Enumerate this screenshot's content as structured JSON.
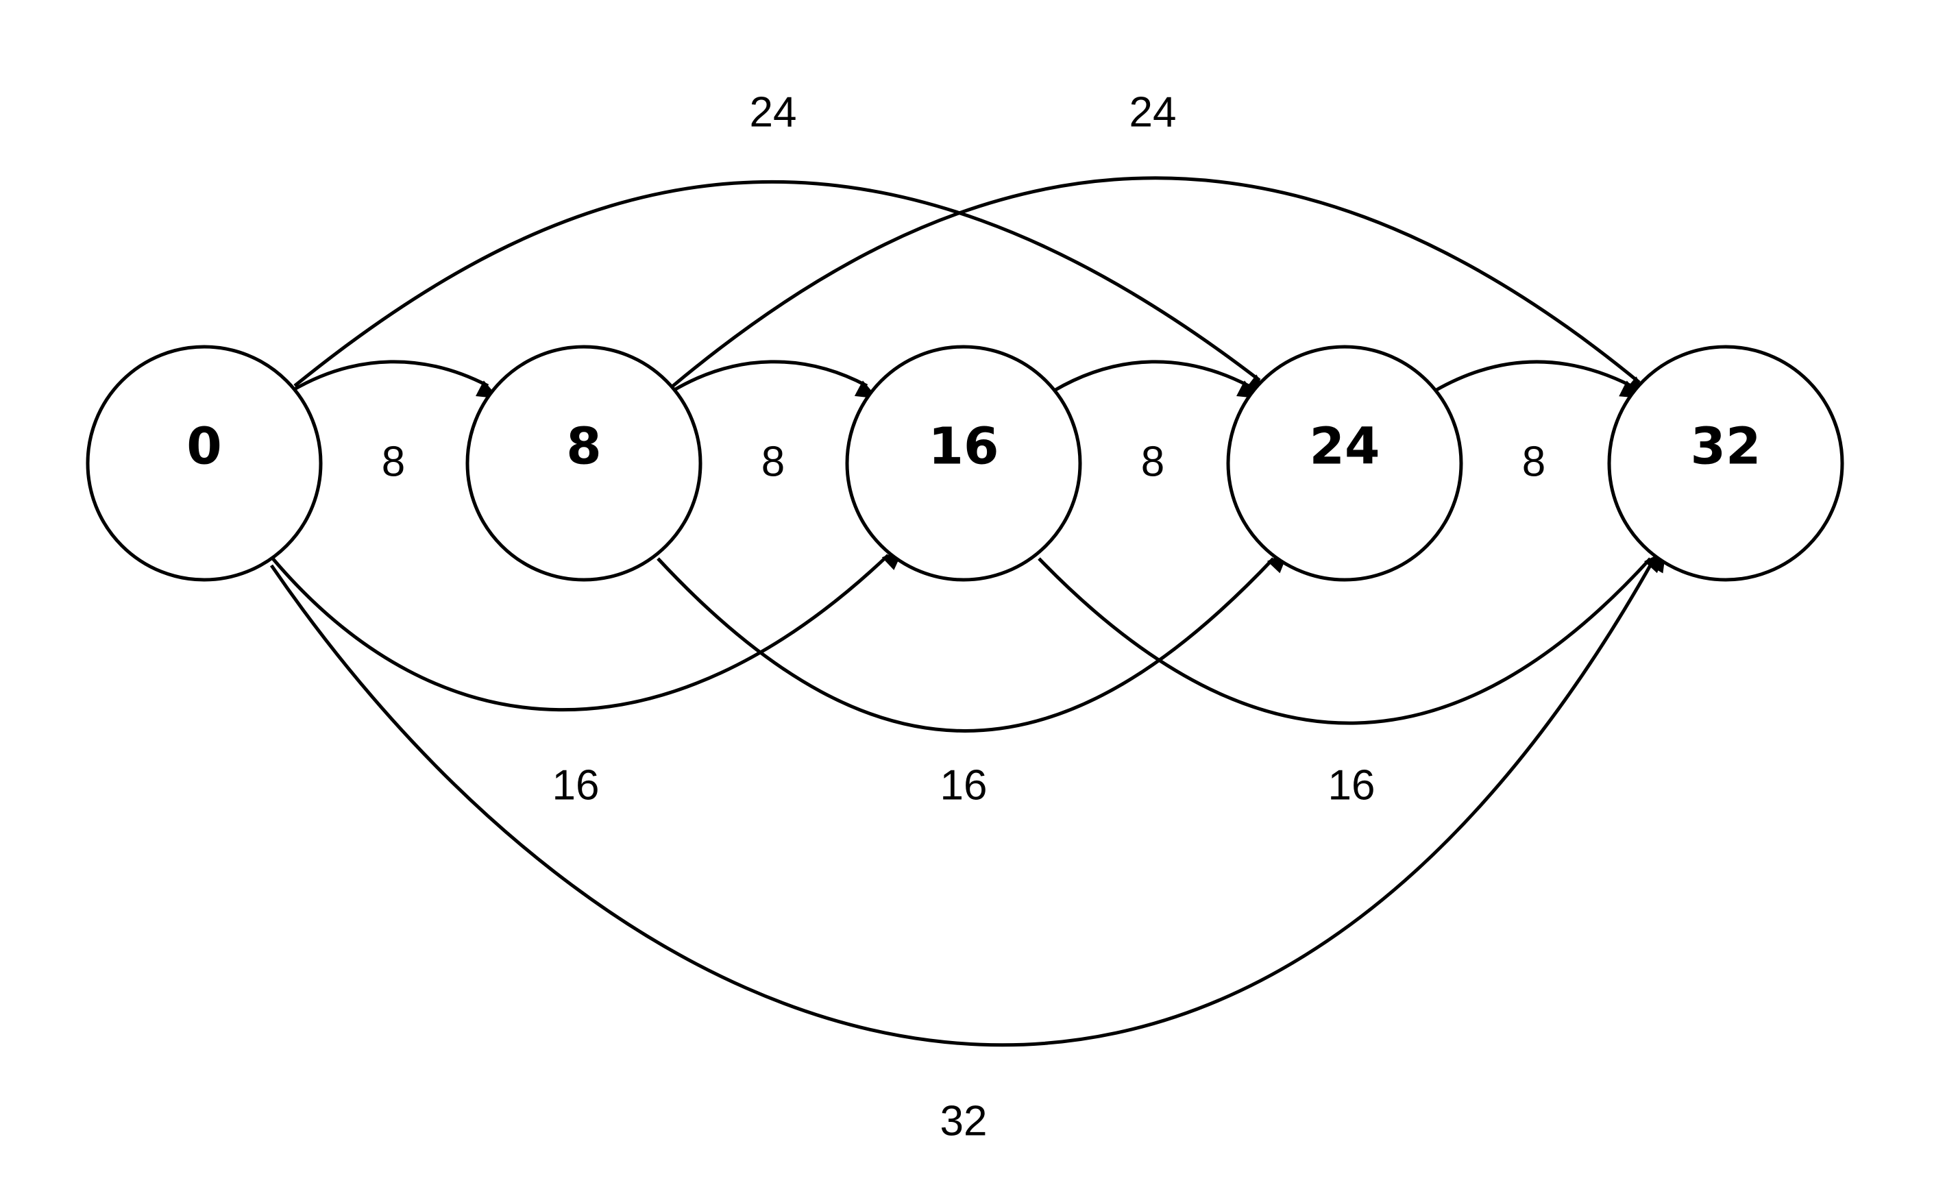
{
  "diagram": {
    "type": "directed-weighted-graph",
    "nodes": [
      {
        "id": "n0",
        "label": "0"
      },
      {
        "id": "n8",
        "label": "8"
      },
      {
        "id": "n16",
        "label": "16"
      },
      {
        "id": "n24",
        "label": "24"
      },
      {
        "id": "n32",
        "label": "32"
      }
    ],
    "edges": [
      {
        "from": "n0",
        "to": "n8",
        "weight": "8"
      },
      {
        "from": "n8",
        "to": "n16",
        "weight": "8"
      },
      {
        "from": "n16",
        "to": "n24",
        "weight": "8"
      },
      {
        "from": "n24",
        "to": "n32",
        "weight": "8"
      },
      {
        "from": "n0",
        "to": "n16",
        "weight": "16"
      },
      {
        "from": "n8",
        "to": "n24",
        "weight": "16"
      },
      {
        "from": "n16",
        "to": "n32",
        "weight": "16"
      },
      {
        "from": "n0",
        "to": "n24",
        "weight": "24"
      },
      {
        "from": "n8",
        "to": "n32",
        "weight": "24"
      },
      {
        "from": "n0",
        "to": "n32",
        "weight": "32"
      }
    ]
  }
}
